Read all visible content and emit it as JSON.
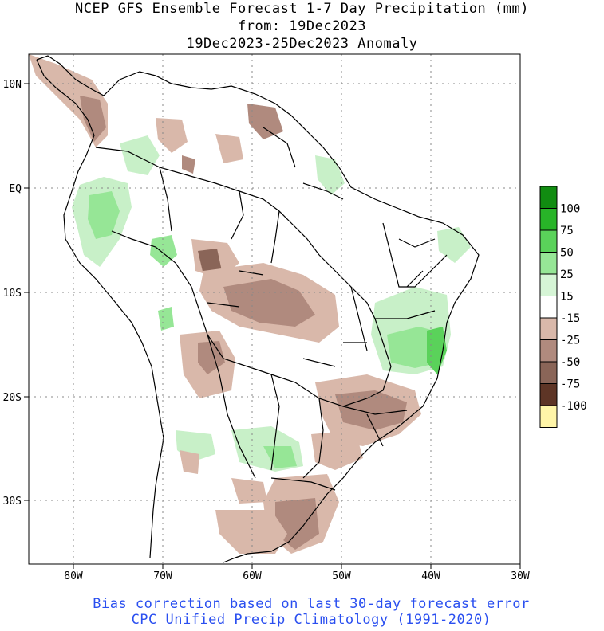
{
  "title": {
    "line1": "NCEP GFS Ensemble Forecast 1-7 Day Precipitation (mm)",
    "line2": "from: 19Dec2023",
    "line3": "19Dec2023-25Dec2023 Anomaly"
  },
  "footer": {
    "line1": "Bias correction based on last 30-day forecast error",
    "line2": "CPC Unified Precip Climatology (1991-2020)"
  },
  "colors": {
    "footer_text": "#2a4ff0",
    "wet_light": "#c8f0c8",
    "wet_mid": "#96e696",
    "wet_strong": "#5ad25a",
    "wet_heavy": "#1fa01f",
    "dry_light": "#d9b8aa",
    "dry_mid": "#b08a7e",
    "dry_strong": "#8a6558",
    "dry_heavy": "#5e3526",
    "dry_extreme": "#fff5a8"
  },
  "map": {
    "lon_labels": [
      "80W",
      "70W",
      "60W",
      "50W",
      "40W",
      "30W"
    ],
    "lat_labels": [
      "10N",
      "EQ",
      "10S",
      "20S",
      "30S"
    ]
  },
  "legend": {
    "entries": [
      {
        "label": "",
        "color": "#118c11"
      },
      {
        "label": "100",
        "color": "#28b428"
      },
      {
        "label": "75",
        "color": "#5ad25a"
      },
      {
        "label": "50",
        "color": "#96e696"
      },
      {
        "label": "25",
        "color": "#d6f5d6"
      },
      {
        "label": "15",
        "color": "#ffffff"
      },
      {
        "label": "-15",
        "color": "#d9b8aa"
      },
      {
        "label": "-25",
        "color": "#b08a7e"
      },
      {
        "label": "-50",
        "color": "#8a6558"
      },
      {
        "label": "-75",
        "color": "#5e3526"
      },
      {
        "label": "-100",
        "color": "#fff5a8"
      }
    ]
  }
}
